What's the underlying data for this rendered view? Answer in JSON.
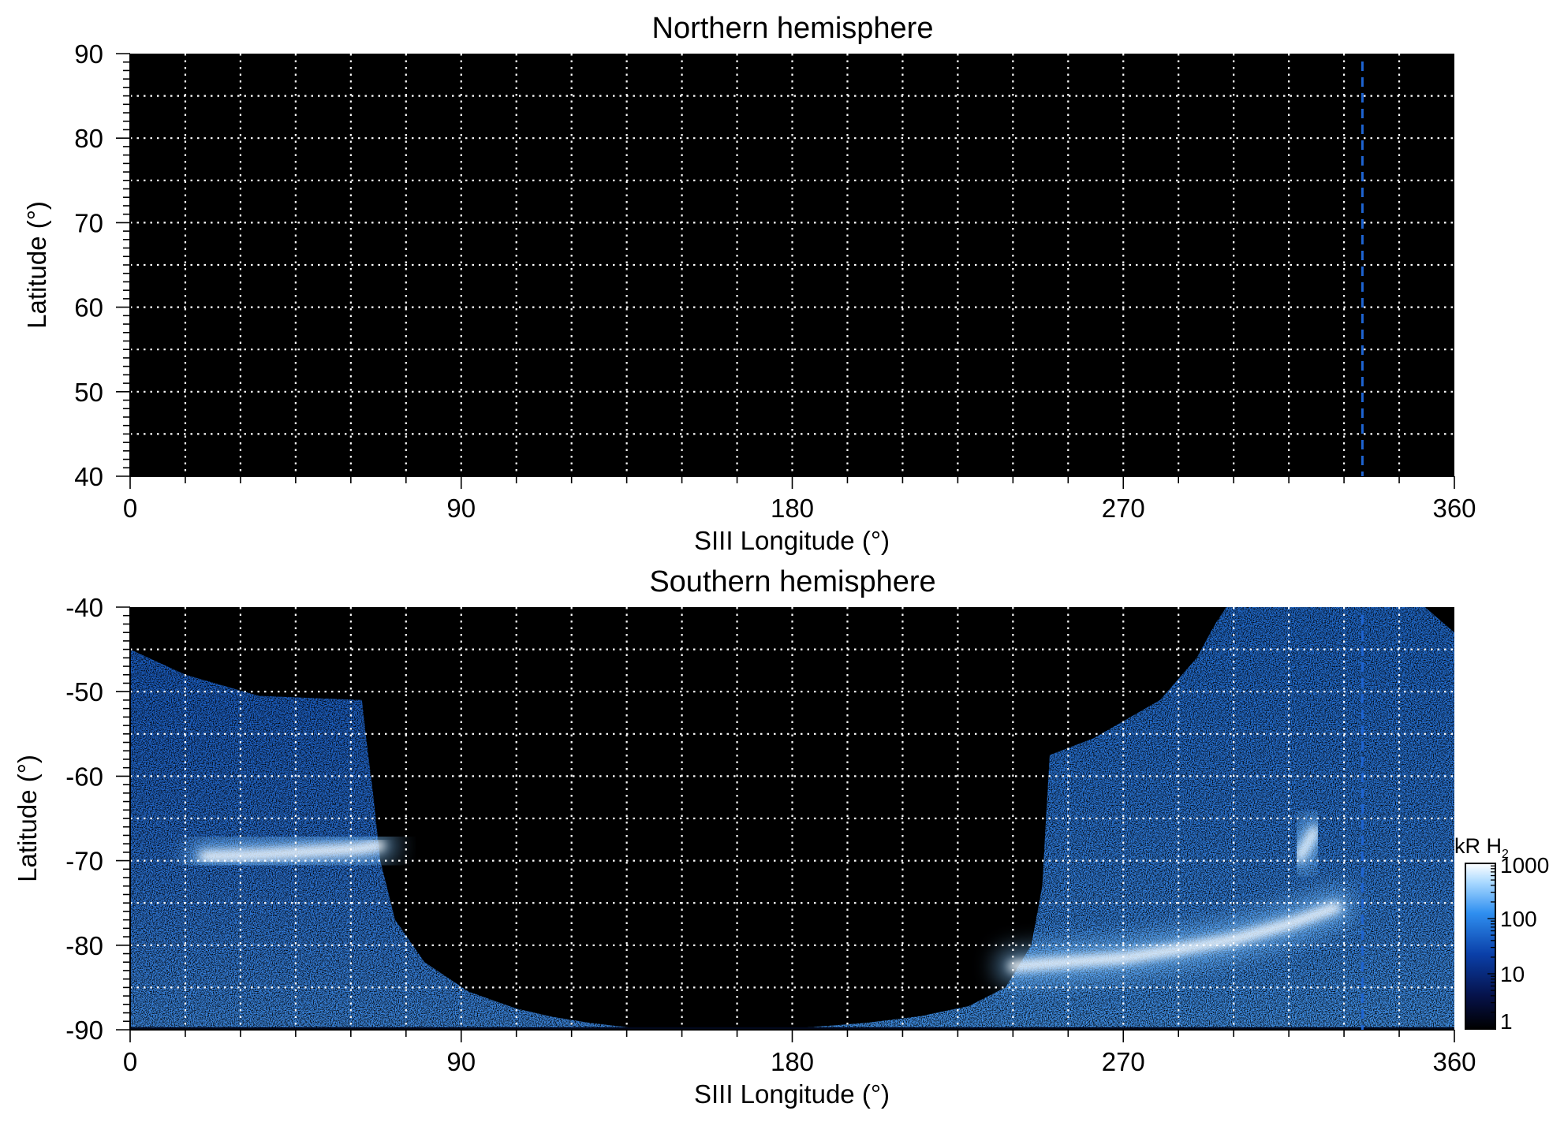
{
  "chart_data": [
    {
      "type": "heatmap",
      "title": "Northern hemisphere",
      "xlabel": "SIII Longitude (°)",
      "ylabel": "Latitude (°)",
      "xlim": [
        0,
        360
      ],
      "ylim": [
        40,
        90
      ],
      "x_ticks": [
        0,
        90,
        180,
        270,
        360
      ],
      "y_ticks": [
        40,
        50,
        60,
        70,
        80,
        90
      ],
      "x_grid_step": 15,
      "y_grid_step": 5,
      "grid": true,
      "background": "#000000",
      "emission_regions": [],
      "dashed_line": {
        "x": 335,
        "color": "#1e64d2"
      }
    },
    {
      "type": "heatmap",
      "title": "Southern hemisphere",
      "xlabel": "SIII Longitude (°)",
      "ylabel": "Latitude (°)",
      "xlim": [
        0,
        360
      ],
      "ylim": [
        -90,
        -40
      ],
      "x_ticks": [
        0,
        90,
        180,
        270,
        360
      ],
      "y_ticks": [
        -40,
        -50,
        -60,
        -70,
        -80,
        -90
      ],
      "x_grid_step": 15,
      "y_grid_step": 5,
      "grid": true,
      "background": "#000000",
      "dashed_line": {
        "x": 335,
        "color": "#1e64d2"
      },
      "emission_regions": [
        {
          "name": "left-emission",
          "boundary": [
            [
              0,
              -45
            ],
            [
              15,
              -48
            ],
            [
              35,
              -50.5
            ],
            [
              63,
              -51
            ],
            [
              64,
              -55
            ],
            [
              66,
              -62
            ],
            [
              68,
              -70
            ],
            [
              72,
              -77
            ],
            [
              80,
              -82
            ],
            [
              92,
              -85.5
            ],
            [
              105,
              -87.5
            ],
            [
              115,
              -88.5
            ],
            [
              125,
              -89.2
            ],
            [
              135,
              -89.7
            ],
            [
              140,
              -90
            ],
            [
              0,
              -90
            ]
          ],
          "mean_intensity_kR": 30
        },
        {
          "name": "right-emission",
          "boundary": [
            [
              360,
              -43
            ],
            [
              360,
              -90
            ],
            [
              172,
              -90
            ],
            [
              185,
              -89.7
            ],
            [
              200,
              -89.2
            ],
            [
              215,
              -88.4
            ],
            [
              228,
              -87.2
            ],
            [
              238,
              -85
            ],
            [
              245,
              -80
            ],
            [
              248,
              -73
            ],
            [
              249,
              -65
            ],
            [
              250,
              -57.5
            ],
            [
              262,
              -55.5
            ],
            [
              280,
              -51
            ],
            [
              290,
              -46
            ],
            [
              295,
              -42
            ],
            [
              298,
              -40
            ],
            [
              352,
              -40
            ]
          ],
          "mean_intensity_kR": 40
        }
      ],
      "bright_arcs": [
        {
          "name": "oval-left",
          "intensity_kR": 1000,
          "points": [
            [
              20,
              -69.5
            ],
            [
              35,
              -69.3
            ],
            [
              50,
              -68.9
            ],
            [
              62,
              -68.6
            ],
            [
              68,
              -68.2
            ]
          ]
        },
        {
          "name": "oval-right",
          "intensity_kR": 1000,
          "points": [
            [
              240,
              -82.5
            ],
            [
              255,
              -82
            ],
            [
              270,
              -81.5
            ],
            [
              285,
              -80.5
            ],
            [
              300,
              -79.3
            ],
            [
              315,
              -77.5
            ],
            [
              328,
              -75.5
            ]
          ]
        },
        {
          "name": "spot-right",
          "intensity_kR": 800,
          "points": [
            [
              318,
              -69.5
            ],
            [
              320,
              -68
            ],
            [
              322,
              -66.5
            ]
          ]
        }
      ]
    }
  ],
  "colorbar": {
    "title_main": "kR H",
    "title_sub": "2",
    "scale": "log",
    "range": [
      1,
      1000
    ],
    "ticks": [
      "1",
      "10",
      "100",
      "1000"
    ],
    "colors": [
      "#000000",
      "#06124a",
      "#0a3fa8",
      "#2f8ff0",
      "#a6d7ff",
      "#ffffff"
    ]
  }
}
